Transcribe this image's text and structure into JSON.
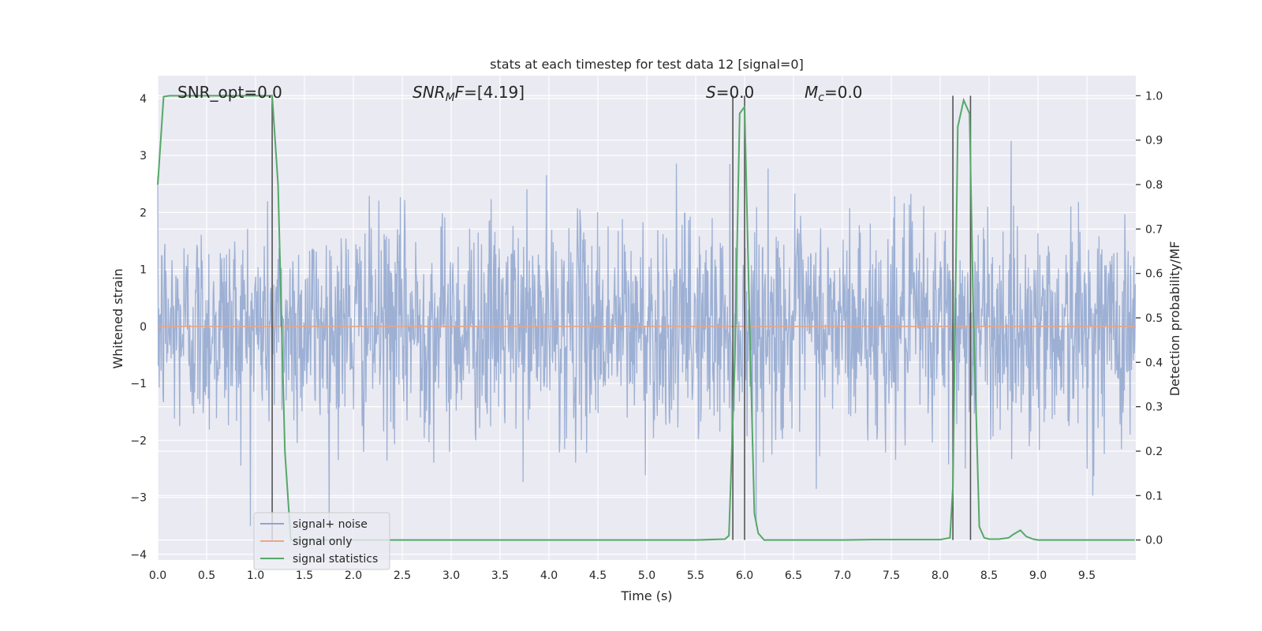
{
  "chart_data": {
    "type": "line",
    "title": "stats at each timestep for test data 12 [signal=0]",
    "xlabel": "Time (s)",
    "ylabel_left": "Whitened strain",
    "ylabel_right": "Detection probability/MF",
    "xlim": [
      0.0,
      10.0
    ],
    "ylim_left": [
      -4.1,
      4.4
    ],
    "ylim_right": [
      -0.045,
      1.045
    ],
    "x_ticks": [
      0.0,
      0.5,
      1.0,
      1.5,
      2.0,
      2.5,
      3.0,
      3.5,
      4.0,
      4.5,
      5.0,
      5.5,
      6.0,
      6.5,
      7.0,
      7.5,
      8.0,
      8.5,
      9.0,
      9.5
    ],
    "x_tick_labels": [
      "0.0",
      "0.5",
      "1.0",
      "1.5",
      "2.0",
      "2.5",
      "3.0",
      "3.5",
      "4.0",
      "4.5",
      "5.0",
      "5.5",
      "6.0",
      "6.5",
      "7.0",
      "7.5",
      "8.0",
      "8.5",
      "9.0",
      "9.5"
    ],
    "y_left_ticks": [
      4,
      3,
      2,
      1,
      0,
      -1,
      -2,
      -3,
      -4
    ],
    "y_left_tick_labels": [
      "4",
      "3",
      "2",
      "1",
      "0",
      "−1",
      "−2",
      "−3",
      "−4"
    ],
    "y_right_ticks": [
      1.0,
      0.9,
      0.8,
      0.7,
      0.6,
      0.5,
      0.4,
      0.3,
      0.2,
      0.1,
      0.0
    ],
    "y_right_tick_labels": [
      "1.0",
      "0.9",
      "0.8",
      "0.7",
      "0.6",
      "0.5",
      "0.4",
      "0.3",
      "0.2",
      "0.1",
      "0.0"
    ],
    "grid": true,
    "legend_position": "lower-left",
    "legend": [
      {
        "label": "signal+ noise",
        "color": "#8fa6cf"
      },
      {
        "label": "signal only",
        "color": "#e8a686"
      },
      {
        "label": "signal statistics",
        "color": "#55a868"
      }
    ],
    "annotations": [
      {
        "id": "snr-opt",
        "text": "SNR_opt=0.0"
      },
      {
        "id": "snr-mf",
        "text_main": "SNR",
        "text_sub": "M",
        "text_rest": "F=[4.19]"
      },
      {
        "id": "s-value",
        "text_main": "S",
        "text_rest": "=0.0"
      },
      {
        "id": "mc-value",
        "text_main": "M",
        "text_sub": "c",
        "text_rest": "=0.0"
      }
    ],
    "noise_series": {
      "name": "signal+ noise",
      "axis": "left",
      "duration_s": 10.0,
      "sample_rate_hz": 204.8,
      "std": 0.95,
      "range": [
        -3.5,
        3.5
      ],
      "color": "#8fa6cf"
    },
    "signal_series": {
      "name": "signal only",
      "axis": "left",
      "x": [
        0.0,
        10.0
      ],
      "y": [
        0.0,
        0.0
      ],
      "color": "#e8a686"
    },
    "stat_series": {
      "name": "signal statistics",
      "axis": "right",
      "color": "#55a868",
      "x": [
        0.0,
        0.06,
        0.12,
        0.25,
        0.5,
        0.75,
        1.0,
        1.17,
        1.23,
        1.3,
        1.36,
        1.45,
        1.6,
        2.0,
        3.0,
        4.0,
        5.0,
        5.5,
        5.8,
        5.84,
        5.9,
        5.95,
        6.0,
        6.05,
        6.1,
        6.14,
        6.2,
        6.3,
        7.0,
        7.3,
        7.5,
        8.0,
        8.1,
        8.13,
        8.18,
        8.24,
        8.3,
        8.34,
        8.4,
        8.45,
        8.5,
        8.6,
        8.7,
        8.75,
        8.82,
        8.88,
        8.95,
        9.0,
        9.5,
        9.99
      ],
      "y": [
        0.8,
        0.998,
        1.0,
        1.0,
        1.0,
        1.0,
        1.0,
        1.0,
        0.8,
        0.2,
        0.0,
        0.0,
        0.0,
        0.0,
        0.0,
        0.0,
        0.0,
        0.0,
        0.002,
        0.01,
        0.4,
        0.96,
        0.975,
        0.5,
        0.06,
        0.015,
        0.0,
        0.0,
        0.0,
        0.001,
        0.001,
        0.001,
        0.005,
        0.12,
        0.93,
        0.99,
        0.96,
        0.5,
        0.03,
        0.005,
        0.002,
        0.002,
        0.005,
        0.013,
        0.022,
        0.008,
        0.002,
        0.0,
        0.0,
        0.0
      ]
    },
    "vertical_markers": [
      {
        "x": 1.17,
        "from": 0.0,
        "to": 1.0
      },
      {
        "x": 5.88,
        "from": 0.0,
        "to": 1.0
      },
      {
        "x": 6.0,
        "from": 0.0,
        "to": 1.0
      },
      {
        "x": 8.13,
        "from": 0.0,
        "to": 1.0
      },
      {
        "x": 8.31,
        "from": 0.0,
        "to": 1.0
      }
    ],
    "colors": {
      "plot_background": "#eaeaf2",
      "grid": "#ffffff",
      "marker": "#555555"
    }
  }
}
